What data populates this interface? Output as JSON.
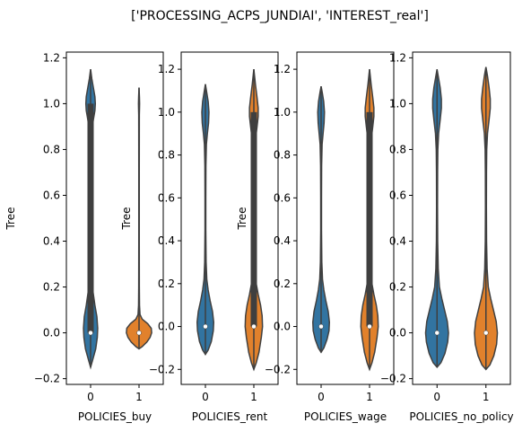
{
  "chart_data": {
    "title": "['PROCESSING_ACPS_JUNDIAI', 'INTEREST_real']",
    "type": "violin",
    "colors": {
      "0": "#3274a1",
      "1": "#e1812c",
      "edge": "#404040",
      "box": "#3f3f3f",
      "median": "#ffffff"
    },
    "panels": [
      {
        "xlabel": "POLICIES_buy",
        "ylabel": "Tree",
        "categories": [
          "0",
          "1"
        ],
        "ylim": [
          -0.225,
          1.225
        ],
        "yticks": [
          -0.2,
          0.0,
          0.2,
          0.4,
          0.6,
          0.8,
          1.0,
          1.2
        ],
        "ytick_labels": [
          "−0.2",
          "0.0",
          "0.2",
          "0.4",
          "0.6",
          "0.8",
          "1.0",
          "1.2"
        ],
        "violins": [
          {
            "category": "0",
            "min": -0.15,
            "max": 1.15,
            "median": 0.0,
            "q1": 0.0,
            "q3": 1.0,
            "profile": [
              [
                -0.15,
                0.0
              ],
              [
                -0.12,
                0.05
              ],
              [
                -0.07,
                0.13
              ],
              [
                -0.02,
                0.17
              ],
              [
                0.02,
                0.18
              ],
              [
                0.07,
                0.16
              ],
              [
                0.12,
                0.11
              ],
              [
                0.18,
                0.06
              ],
              [
                0.25,
                0.03
              ],
              [
                0.35,
                0.015
              ],
              [
                0.5,
                0.01
              ],
              [
                0.65,
                0.01
              ],
              [
                0.8,
                0.015
              ],
              [
                0.88,
                0.03
              ],
              [
                0.93,
                0.07
              ],
              [
                0.97,
                0.11
              ],
              [
                1.0,
                0.12
              ],
              [
                1.03,
                0.11
              ],
              [
                1.07,
                0.07
              ],
              [
                1.11,
                0.03
              ],
              [
                1.15,
                0.0
              ]
            ]
          },
          {
            "category": "1",
            "min": -0.07,
            "max": 1.07,
            "median": 0.0,
            "q1": 0.0,
            "q3": 0.0,
            "profile": [
              [
                -0.07,
                0.0
              ],
              [
                -0.06,
                0.08
              ],
              [
                -0.04,
                0.2
              ],
              [
                -0.02,
                0.28
              ],
              [
                0.0,
                0.32
              ],
              [
                0.02,
                0.31
              ],
              [
                0.04,
                0.22
              ],
              [
                0.06,
                0.08
              ],
              [
                0.08,
                0.025
              ],
              [
                0.12,
                0.012
              ],
              [
                0.2,
                0.008
              ],
              [
                0.4,
                0.006
              ],
              [
                0.7,
                0.006
              ],
              [
                0.95,
                0.008
              ],
              [
                0.98,
                0.012
              ],
              [
                1.0,
                0.014
              ],
              [
                1.03,
                0.01
              ],
              [
                1.07,
                0.0
              ]
            ]
          }
        ]
      },
      {
        "xlabel": "POLICIES_rent",
        "ylabel": "Tree",
        "categories": [
          "0",
          "1"
        ],
        "ylim": [
          -0.27,
          1.28
        ],
        "yticks": [
          -0.2,
          0.0,
          0.2,
          0.4,
          0.6,
          0.8,
          1.0,
          1.2
        ],
        "ytick_labels": [
          "−0.2",
          "0.0",
          "0.2",
          "0.4",
          "0.6",
          "0.8",
          "1.0",
          "1.2"
        ],
        "violins": [
          {
            "category": "0",
            "min": -0.13,
            "max": 1.13,
            "median": 0.0,
            "q1": 0.0,
            "q3": 0.0,
            "profile": [
              [
                -0.13,
                0.0
              ],
              [
                -0.11,
                0.07
              ],
              [
                -0.07,
                0.15
              ],
              [
                -0.02,
                0.2
              ],
              [
                0.02,
                0.21
              ],
              [
                0.07,
                0.18
              ],
              [
                0.12,
                0.12
              ],
              [
                0.17,
                0.07
              ],
              [
                0.22,
                0.035
              ],
              [
                0.3,
                0.018
              ],
              [
                0.45,
                0.01
              ],
              [
                0.6,
                0.01
              ],
              [
                0.75,
                0.013
              ],
              [
                0.85,
                0.025
              ],
              [
                0.9,
                0.05
              ],
              [
                0.95,
                0.08
              ],
              [
                1.0,
                0.09
              ],
              [
                1.05,
                0.07
              ],
              [
                1.09,
                0.035
              ],
              [
                1.13,
                0.0
              ]
            ]
          },
          {
            "category": "1",
            "min": -0.2,
            "max": 1.2,
            "median": 0.0,
            "q1": 0.0,
            "q3": 1.0,
            "profile": [
              [
                -0.2,
                0.0
              ],
              [
                -0.17,
                0.06
              ],
              [
                -0.12,
                0.13
              ],
              [
                -0.05,
                0.19
              ],
              [
                0.0,
                0.22
              ],
              [
                0.05,
                0.21
              ],
              [
                0.1,
                0.17
              ],
              [
                0.15,
                0.11
              ],
              [
                0.2,
                0.06
              ],
              [
                0.28,
                0.03
              ],
              [
                0.4,
                0.016
              ],
              [
                0.55,
                0.012
              ],
              [
                0.7,
                0.014
              ],
              [
                0.8,
                0.02
              ],
              [
                0.87,
                0.04
              ],
              [
                0.93,
                0.08
              ],
              [
                0.98,
                0.11
              ],
              [
                1.02,
                0.11
              ],
              [
                1.07,
                0.08
              ],
              [
                1.13,
                0.04
              ],
              [
                1.2,
                0.0
              ]
            ]
          }
        ]
      },
      {
        "xlabel": "POLICIES_wage",
        "ylabel": "Tree",
        "categories": [
          "0",
          "1"
        ],
        "ylim": [
          -0.27,
          1.28
        ],
        "yticks": [
          -0.2,
          0.0,
          0.2,
          0.4,
          0.6,
          0.8,
          1.0,
          1.2
        ],
        "ytick_labels": [
          "−0.2",
          "0.0",
          "0.2",
          "0.4",
          "0.6",
          "0.8",
          "1.0",
          "1.2"
        ],
        "violins": [
          {
            "category": "0",
            "min": -0.12,
            "max": 1.12,
            "median": 0.0,
            "q1": 0.0,
            "q3": 0.0,
            "profile": [
              [
                -0.12,
                0.0
              ],
              [
                -0.1,
                0.07
              ],
              [
                -0.06,
                0.15
              ],
              [
                -0.02,
                0.2
              ],
              [
                0.02,
                0.21
              ],
              [
                0.07,
                0.18
              ],
              [
                0.12,
                0.12
              ],
              [
                0.17,
                0.07
              ],
              [
                0.22,
                0.035
              ],
              [
                0.3,
                0.018
              ],
              [
                0.45,
                0.01
              ],
              [
                0.6,
                0.01
              ],
              [
                0.75,
                0.013
              ],
              [
                0.85,
                0.025
              ],
              [
                0.9,
                0.05
              ],
              [
                0.95,
                0.075
              ],
              [
                1.0,
                0.085
              ],
              [
                1.05,
                0.065
              ],
              [
                1.09,
                0.03
              ],
              [
                1.12,
                0.0
              ]
            ]
          },
          {
            "category": "1",
            "min": -0.2,
            "max": 1.2,
            "median": 0.0,
            "q1": 0.0,
            "q3": 1.0,
            "profile": [
              [
                -0.2,
                0.0
              ],
              [
                -0.17,
                0.06
              ],
              [
                -0.12,
                0.13
              ],
              [
                -0.05,
                0.19
              ],
              [
                0.0,
                0.22
              ],
              [
                0.05,
                0.21
              ],
              [
                0.1,
                0.17
              ],
              [
                0.15,
                0.11
              ],
              [
                0.2,
                0.06
              ],
              [
                0.28,
                0.03
              ],
              [
                0.4,
                0.016
              ],
              [
                0.55,
                0.012
              ],
              [
                0.7,
                0.014
              ],
              [
                0.8,
                0.02
              ],
              [
                0.87,
                0.04
              ],
              [
                0.93,
                0.08
              ],
              [
                0.98,
                0.11
              ],
              [
                1.02,
                0.11
              ],
              [
                1.07,
                0.08
              ],
              [
                1.13,
                0.04
              ],
              [
                1.2,
                0.0
              ]
            ]
          }
        ]
      },
      {
        "xlabel": "POLICIES_no_policy",
        "ylabel": "",
        "categories": [
          "0",
          "1"
        ],
        "ylim": [
          -0.225,
          1.225
        ],
        "yticks": [
          -0.2,
          0.0,
          0.2,
          0.4,
          0.6,
          0.8,
          1.0,
          1.2
        ],
        "ytick_labels": [
          "−0.2",
          "0.0",
          "0.2",
          "0.4",
          "0.6",
          "0.8",
          "1.0",
          "1.2"
        ],
        "violins": [
          {
            "category": "0",
            "min": -0.15,
            "max": 1.15,
            "median": 0.0,
            "q1": 0.0,
            "q3": 0.0,
            "profile": [
              [
                -0.15,
                0.0
              ],
              [
                -0.13,
                0.1
              ],
              [
                -0.09,
                0.2
              ],
              [
                -0.04,
                0.27
              ],
              [
                0.0,
                0.29
              ],
              [
                0.05,
                0.26
              ],
              [
                0.1,
                0.19
              ],
              [
                0.15,
                0.12
              ],
              [
                0.2,
                0.06
              ],
              [
                0.28,
                0.03
              ],
              [
                0.4,
                0.016
              ],
              [
                0.55,
                0.012
              ],
              [
                0.7,
                0.014
              ],
              [
                0.8,
                0.02
              ],
              [
                0.87,
                0.04
              ],
              [
                0.93,
                0.08
              ],
              [
                0.98,
                0.11
              ],
              [
                1.02,
                0.11
              ],
              [
                1.07,
                0.08
              ],
              [
                1.11,
                0.04
              ],
              [
                1.15,
                0.0
              ]
            ]
          },
          {
            "category": "1",
            "min": -0.16,
            "max": 1.16,
            "median": 0.0,
            "q1": 0.0,
            "q3": 0.0,
            "profile": [
              [
                -0.16,
                0.0
              ],
              [
                -0.14,
                0.1
              ],
              [
                -0.1,
                0.2
              ],
              [
                -0.05,
                0.27
              ],
              [
                0.0,
                0.29
              ],
              [
                0.05,
                0.26
              ],
              [
                0.1,
                0.19
              ],
              [
                0.15,
                0.12
              ],
              [
                0.2,
                0.06
              ],
              [
                0.28,
                0.03
              ],
              [
                0.4,
                0.016
              ],
              [
                0.55,
                0.012
              ],
              [
                0.7,
                0.014
              ],
              [
                0.8,
                0.02
              ],
              [
                0.87,
                0.04
              ],
              [
                0.93,
                0.08
              ],
              [
                0.98,
                0.11
              ],
              [
                1.02,
                0.11
              ],
              [
                1.07,
                0.08
              ],
              [
                1.12,
                0.04
              ],
              [
                1.16,
                0.0
              ]
            ]
          }
        ]
      }
    ]
  }
}
